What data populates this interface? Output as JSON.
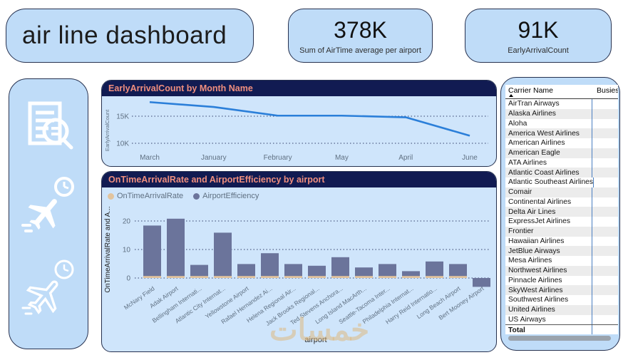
{
  "header": {
    "title": "air line dashboard",
    "kpis": [
      {
        "value": "378K",
        "label": "Sum of AirTime average per airport"
      },
      {
        "value": "91K",
        "label": "EarlyArrivalCount"
      }
    ]
  },
  "sidebar": {
    "icons": [
      "report-search-icon",
      "plane-departure-clock-icon",
      "plane-outline-clock-icon"
    ]
  },
  "chart_data": [
    {
      "type": "line",
      "title": "EarlyArrivalCount by Month Name",
      "categories": [
        "March",
        "January",
        "February",
        "May",
        "April",
        "June"
      ],
      "values": [
        17600,
        16700,
        15100,
        15100,
        14800,
        11400
      ],
      "xlabel": "Month Name",
      "ylabel": "EarlyArrivalCount",
      "yticks": [
        {
          "label": "15K",
          "value": 15000
        },
        {
          "label": "10K",
          "value": 10000
        }
      ],
      "ylim": [
        9000,
        18500
      ],
      "line_color": "#2b7fd9",
      "grid": "dotted"
    },
    {
      "type": "bar",
      "title": "OnTimeArrivalRate and AirportEfficiency by airport",
      "categories": [
        "McNary Field",
        "Adak Airport",
        "Bellingham Internati...",
        "Atlantic City Internat...",
        "Yellowstone Airport",
        "Rafael Hernandez Ai...",
        "Helena Regional Air...",
        "Jack Brooks Regional...",
        "Ted Stevens Anchora...",
        "Long Island MacArth...",
        "Seattle-Tacoma Inter...",
        "Philadelphia Internat...",
        "Harry Reid Internatio...",
        "Long Beach Airport",
        "Bert Mooney Airport"
      ],
      "series": [
        {
          "name": "OnTimeArrivalRate",
          "color": "#e2c49e",
          "values": [
            0.7,
            0.7,
            0.7,
            0.7,
            0.7,
            0.7,
            0.7,
            0.7,
            0.7,
            0.7,
            0.7,
            0.7,
            0.7,
            0.7,
            0
          ]
        },
        {
          "name": "AirportEfficiency",
          "color": "#6b749b",
          "values": [
            18.4,
            20.8,
            4.6,
            15.9,
            4.9,
            8.7,
            4.9,
            4.3,
            7.3,
            3.7,
            4.9,
            2.4,
            5.8,
            4.9,
            -3.1
          ]
        }
      ],
      "xlabel": "airport",
      "ylabel": "OnTimeArrivalRate and A...",
      "yticks": [
        20,
        10,
        0
      ],
      "ylim": [
        -4,
        22
      ],
      "grid": "dotted",
      "legend_position": "top-left"
    }
  ],
  "table": {
    "col1": "Carrier Name",
    "col2": "Busies",
    "sort": "ascending",
    "rows": [
      "AirTran Airways",
      "Alaska Airlines",
      "Aloha",
      "America West Airlines",
      "American Airlines",
      "American Eagle",
      "ATA Airlines",
      "Atlantic Coast Airlines",
      "Atlantic Southeast Airlines",
      "Comair",
      "Continental Airlines",
      "Delta Air Lines",
      "ExpressJet Airlines",
      "Frontier",
      "Hawaiian Airlines",
      "JetBlue Airways",
      "Mesa Airlines",
      "Northwest Airlines",
      "Pinnacle Airlines",
      "SkyWest Airlines",
      "Southwest Airlines",
      "United Airlines",
      "US Airways"
    ],
    "total_label": "Total"
  },
  "watermark": "خمسات",
  "colors": {
    "card_bg": "#bfdcf8",
    "chart_bg": "#cfe5fb",
    "navy": "#111b52",
    "salmon": "#ef8e7e",
    "line_blue": "#2b7fd9",
    "bar_slate": "#6b749b",
    "bar_tan": "#e2c49e",
    "axis_text": "#5f7082",
    "grid_dot": "#33406b",
    "divider_blue": "#4a7fc1"
  }
}
